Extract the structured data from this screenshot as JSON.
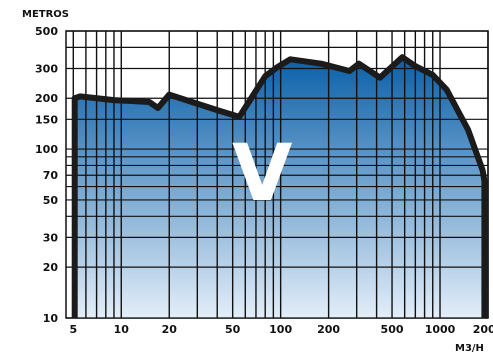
{
  "chart_data": {
    "type": "area",
    "ylabel": "METROS",
    "xlabel": "M3/H",
    "x_scale": "log",
    "y_scale": "log",
    "xlim": [
      4.5,
      2000
    ],
    "ylim": [
      10,
      500
    ],
    "grid": true,
    "x_ticks": [
      5,
      10,
      20,
      50,
      100,
      200,
      500,
      1000,
      2000
    ],
    "x_tick_labels": [
      "5",
      "10",
      "20",
      "50",
      "100",
      "200",
      "500",
      "1000",
      "2000"
    ],
    "y_ticks": [
      10,
      20,
      30,
      50,
      70,
      100,
      150,
      200,
      300,
      500
    ],
    "y_tick_labels": [
      "10",
      "20",
      "30",
      "50",
      "70",
      "100",
      "150",
      "200",
      "300",
      "500"
    ],
    "region_label": "V",
    "colors": {
      "fill_top": "#0a5fa8",
      "fill_bottom": "#e3eef9",
      "outline": "#1b1b1b",
      "grid": "#111111",
      "label": "#ffffff"
    },
    "envelope": {
      "x": [
        5.1,
        5.1,
        5.5,
        9,
        15,
        17,
        20,
        40,
        55,
        80,
        95,
        115,
        180,
        270,
        310,
        420,
        580,
        700,
        900,
        1100,
        1500,
        1850,
        1900,
        1900
      ],
      "y": [
        10,
        200,
        205,
        195,
        190,
        175,
        210,
        170,
        155,
        270,
        305,
        340,
        320,
        290,
        320,
        265,
        350,
        310,
        275,
        225,
        130,
        75,
        65,
        10
      ]
    }
  }
}
